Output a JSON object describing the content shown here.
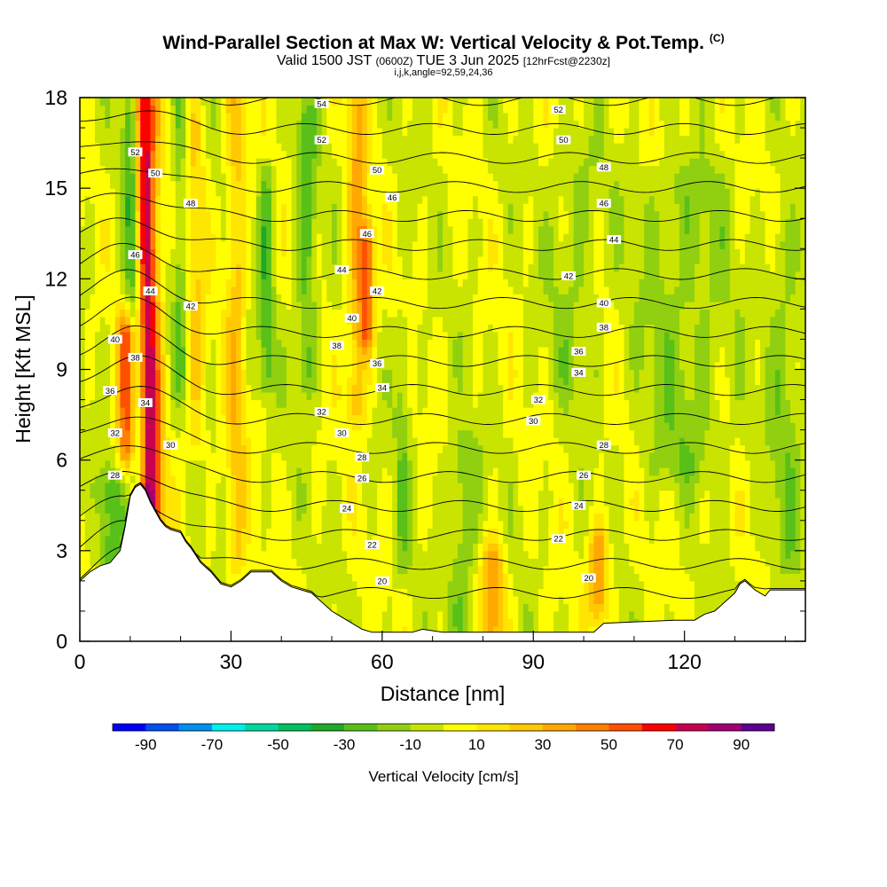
{
  "title": {
    "main": "Wind-Parallel Section at Max W: Vertical Velocity & Pot.Temp.",
    "copyright": "(C)",
    "valid_prefix": "Valid 1500 JST",
    "valid_utc": "(0600Z)",
    "valid_date": "TUE 3 Jun 2025",
    "forecast": "[12hrFcst@2230z]",
    "indices": "i,j,k,angle=92,59,24,36"
  },
  "chart_data": {
    "type": "heatmap",
    "xlabel": "Distance [nm]",
    "ylabel": "Height [Kft MSL]",
    "xlim": [
      0,
      144
    ],
    "ylim": [
      0,
      18
    ],
    "x_ticks": [
      0,
      30,
      60,
      90,
      120
    ],
    "y_ticks": [
      0,
      3,
      6,
      9,
      12,
      15,
      18
    ],
    "colorbar": {
      "label": "Vertical Velocity [cm/s]",
      "bounds": [
        -100,
        -90,
        -80,
        -70,
        -60,
        -50,
        -40,
        -30,
        -20,
        -10,
        0,
        10,
        20,
        30,
        40,
        50,
        60,
        70,
        80,
        90,
        100
      ],
      "colors": [
        "#0000ff",
        "#0050f0",
        "#0090ee",
        "#00f0f0",
        "#00d8a0",
        "#00c060",
        "#20a828",
        "#58c018",
        "#90d010",
        "#c8e400",
        "#ffff00",
        "#ffe600",
        "#ffc800",
        "#ffa800",
        "#ff8000",
        "#ff5000",
        "#ff0000",
        "#c80050",
        "#a00070",
        "#5a0090"
      ],
      "tick_labels": [
        "-90",
        "-70",
        "-50",
        "-30",
        "-10",
        "10",
        "30",
        "50",
        "70",
        "90"
      ]
    },
    "terrain_kft": [
      [
        0,
        2.0
      ],
      [
        2,
        2.3
      ],
      [
        4,
        2.5
      ],
      [
        6,
        2.6
      ],
      [
        8,
        3.0
      ],
      [
        9,
        3.8
      ],
      [
        10,
        4.8
      ],
      [
        11,
        5.1
      ],
      [
        12,
        5.2
      ],
      [
        13,
        5.0
      ],
      [
        14,
        4.6
      ],
      [
        15,
        4.3
      ],
      [
        16,
        4.0
      ],
      [
        17,
        3.8
      ],
      [
        18,
        3.7
      ],
      [
        20,
        3.6
      ],
      [
        21,
        3.3
      ],
      [
        22,
        3.1
      ],
      [
        24,
        2.6
      ],
      [
        26,
        2.3
      ],
      [
        28,
        1.9
      ],
      [
        30,
        1.8
      ],
      [
        32,
        2.0
      ],
      [
        34,
        2.3
      ],
      [
        38,
        2.3
      ],
      [
        40,
        2.0
      ],
      [
        42,
        1.8
      ],
      [
        44,
        1.7
      ],
      [
        46,
        1.6
      ],
      [
        48,
        1.3
      ],
      [
        50,
        1.0
      ],
      [
        52,
        0.8
      ],
      [
        54,
        0.6
      ],
      [
        56,
        0.4
      ],
      [
        58,
        0.3
      ],
      [
        66,
        0.3
      ],
      [
        68,
        0.4
      ],
      [
        72,
        0.3
      ],
      [
        102,
        0.3
      ],
      [
        104,
        0.6
      ],
      [
        118,
        0.7
      ],
      [
        122,
        0.7
      ],
      [
        124,
        0.9
      ],
      [
        126,
        1.0
      ],
      [
        128,
        1.3
      ],
      [
        130,
        1.6
      ],
      [
        131,
        1.9
      ],
      [
        132,
        2.0
      ],
      [
        134,
        1.7
      ],
      [
        136,
        1.5
      ],
      [
        137,
        1.7
      ],
      [
        144,
        1.7
      ]
    ],
    "theta_contours_K": [
      20,
      22,
      24,
      26,
      28,
      30,
      32,
      34,
      36,
      38,
      40,
      42,
      44,
      46,
      48,
      50,
      52,
      54
    ],
    "theta_contour_labels": [
      {
        "text": "54",
        "x": 48,
        "y": 17.8
      },
      {
        "text": "52",
        "x": 48,
        "y": 16.6
      },
      {
        "text": "50",
        "x": 59,
        "y": 15.6
      },
      {
        "text": "46",
        "x": 62,
        "y": 14.7
      },
      {
        "text": "46",
        "x": 57,
        "y": 13.5
      },
      {
        "text": "44",
        "x": 52,
        "y": 12.3
      },
      {
        "text": "42",
        "x": 59,
        "y": 11.6
      },
      {
        "text": "40",
        "x": 54,
        "y": 10.7
      },
      {
        "text": "38",
        "x": 51,
        "y": 9.8
      },
      {
        "text": "36",
        "x": 59,
        "y": 9.2
      },
      {
        "text": "34",
        "x": 60,
        "y": 8.4
      },
      {
        "text": "32",
        "x": 48,
        "y": 7.6
      },
      {
        "text": "30",
        "x": 52,
        "y": 6.9
      },
      {
        "text": "28",
        "x": 56,
        "y": 6.1
      },
      {
        "text": "26",
        "x": 56,
        "y": 5.4
      },
      {
        "text": "24",
        "x": 53,
        "y": 4.4
      },
      {
        "text": "22",
        "x": 58,
        "y": 3.2
      },
      {
        "text": "20",
        "x": 60,
        "y": 2.0
      },
      {
        "text": "52",
        "x": 95,
        "y": 17.6
      },
      {
        "text": "50",
        "x": 96,
        "y": 16.6
      },
      {
        "text": "48",
        "x": 104,
        "y": 15.7
      },
      {
        "text": "46",
        "x": 104,
        "y": 14.5
      },
      {
        "text": "44",
        "x": 106,
        "y": 13.3
      },
      {
        "text": "42",
        "x": 97,
        "y": 12.1
      },
      {
        "text": "40",
        "x": 104,
        "y": 11.2
      },
      {
        "text": "38",
        "x": 104,
        "y": 10.4
      },
      {
        "text": "36",
        "x": 99,
        "y": 9.6
      },
      {
        "text": "34",
        "x": 99,
        "y": 8.9
      },
      {
        "text": "32",
        "x": 91,
        "y": 8.0
      },
      {
        "text": "30",
        "x": 90,
        "y": 7.3
      },
      {
        "text": "28",
        "x": 104,
        "y": 6.5
      },
      {
        "text": "26",
        "x": 100,
        "y": 5.5
      },
      {
        "text": "24",
        "x": 99,
        "y": 4.5
      },
      {
        "text": "22",
        "x": 95,
        "y": 3.4
      },
      {
        "text": "20",
        "x": 101,
        "y": 2.1
      },
      {
        "text": "52",
        "x": 11,
        "y": 16.2
      },
      {
        "text": "50",
        "x": 15,
        "y": 15.5
      },
      {
        "text": "48",
        "x": 22,
        "y": 14.5
      },
      {
        "text": "46",
        "x": 11,
        "y": 12.8
      },
      {
        "text": "44",
        "x": 14,
        "y": 11.6
      },
      {
        "text": "42",
        "x": 22,
        "y": 11.1
      },
      {
        "text": "40",
        "x": 7,
        "y": 10.0
      },
      {
        "text": "38",
        "x": 11,
        "y": 9.4
      },
      {
        "text": "36",
        "x": 6,
        "y": 8.3
      },
      {
        "text": "34",
        "x": 13,
        "y": 7.9
      },
      {
        "text": "32",
        "x": 7,
        "y": 6.9
      },
      {
        "text": "30",
        "x": 18,
        "y": 6.5
      },
      {
        "text": "28",
        "x": 7,
        "y": 5.5
      }
    ],
    "w_features": [
      {
        "x": 14,
        "width": 2.5,
        "ybot": 4.5,
        "ytop": 18,
        "w": 85,
        "tilt": 0.3
      },
      {
        "x": 11.5,
        "width": 1.8,
        "ybot": 6,
        "ytop": 18,
        "w": -55,
        "tilt": 0.25
      },
      {
        "x": 9.5,
        "width": 2.0,
        "ybot": 6.5,
        "ytop": 10,
        "w": 60,
        "tilt": 0
      },
      {
        "x": 6,
        "width": 2.5,
        "ybot": 2.5,
        "ytop": 5,
        "w": -25,
        "tilt": 0
      },
      {
        "x": 20,
        "width": 1.5,
        "ybot": 9,
        "ytop": 18,
        "w": -20,
        "tilt": 0
      },
      {
        "x": 23,
        "width": 2.0,
        "ybot": 7,
        "ytop": 17,
        "w": 20,
        "tilt": 0
      },
      {
        "x": 31,
        "width": 2.0,
        "ybot": 3,
        "ytop": 18,
        "w": 25,
        "tilt": 0
      },
      {
        "x": 37,
        "width": 1.5,
        "ybot": 9,
        "ytop": 15,
        "w": -25,
        "tilt": 0
      },
      {
        "x": 45,
        "width": 2.0,
        "ybot": 9,
        "ytop": 17,
        "w": -25,
        "tilt": 0
      },
      {
        "x": 55,
        "width": 2.0,
        "ybot": 8,
        "ytop": 18,
        "w": 30,
        "tilt": 0
      },
      {
        "x": 57,
        "width": 1.5,
        "ybot": 10.5,
        "ytop": 13,
        "w": 45,
        "tilt": 0
      },
      {
        "x": 64,
        "width": 1.5,
        "ybot": 3,
        "ytop": 10,
        "w": -15,
        "tilt": 0
      },
      {
        "x": 76,
        "width": 3.0,
        "ybot": 1,
        "ytop": 6,
        "w": -20,
        "tilt": 0
      },
      {
        "x": 82,
        "width": 2.5,
        "ybot": 0.5,
        "ytop": 2.5,
        "w": 35,
        "tilt": 0
      },
      {
        "x": 103,
        "width": 2.0,
        "ybot": 1.5,
        "ytop": 3,
        "w": 40,
        "tilt": 0
      },
      {
        "x": 120,
        "width": 9.0,
        "ybot": 6,
        "ytop": 15,
        "w": -15,
        "tilt": 0
      },
      {
        "x": 98,
        "width": 5.0,
        "ybot": 9,
        "ytop": 16,
        "w": -12,
        "tilt": 0
      },
      {
        "x": 140,
        "width": 3.5,
        "ybot": 3,
        "ytop": 13,
        "w": -15,
        "tilt": 0
      }
    ]
  }
}
